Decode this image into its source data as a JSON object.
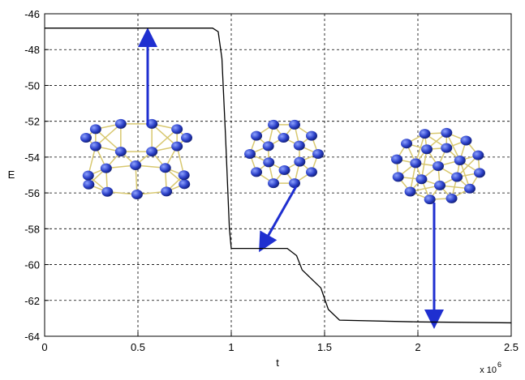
{
  "chart_data": {
    "type": "line",
    "x_label": "t",
    "y_label": "E",
    "x_multiplier": "x 10",
    "x_multiplier_exponent": "6",
    "x": [
      0,
      0.5,
      0.9,
      0.93,
      0.95,
      0.97,
      0.99,
      1.0,
      1.1,
      1.3,
      1.35,
      1.38,
      1.42,
      1.48,
      1.52,
      1.58,
      2.0,
      2.5
    ],
    "series": [
      {
        "color": "#000000",
        "values": [
          -46.8,
          -46.8,
          -46.8,
          -47.0,
          -48.5,
          -53.0,
          -58.0,
          -59.1,
          -59.1,
          -59.1,
          -59.5,
          -60.3,
          -60.7,
          -61.3,
          -62.5,
          -63.1,
          -63.2,
          -63.25
        ]
      }
    ],
    "xlim": [
      0,
      2.5
    ],
    "ylim": [
      -64,
      -46
    ],
    "xticks": [
      0,
      0.5,
      1,
      1.5,
      2,
      2.5
    ],
    "yticks": [
      -64,
      -62,
      -60,
      -58,
      -56,
      -54,
      -52,
      -50,
      -48,
      -46
    ],
    "grid": true
  }
}
